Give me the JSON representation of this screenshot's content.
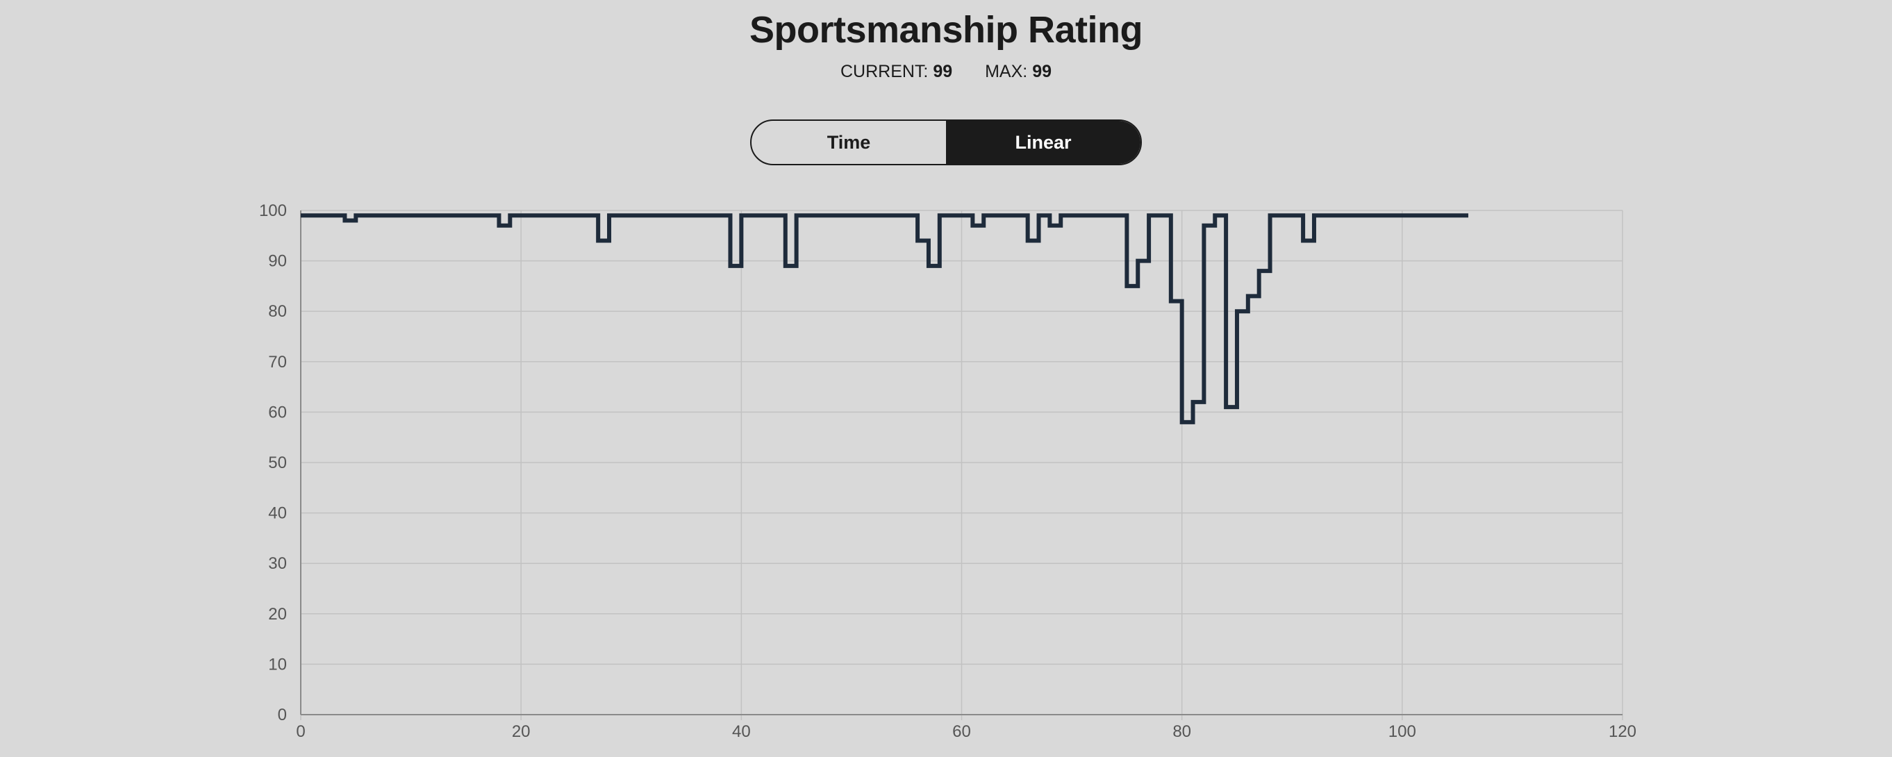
{
  "title": "Sportsmanship Rating",
  "stats": {
    "current_label": "CURRENT:",
    "current_value": "99",
    "max_label": "MAX:",
    "max_value": "99"
  },
  "toggle": {
    "options": [
      "Time",
      "Linear"
    ],
    "selected": "Linear"
  },
  "colors": {
    "background": "#d9d9d9",
    "line": "#1e2b3b",
    "grid": "#c2c2c2",
    "toggle_active": "#1b1b1b"
  },
  "chart_data": {
    "type": "line",
    "stepped": true,
    "title": "",
    "xlabel": "",
    "ylabel": "",
    "xlim": [
      0,
      120
    ],
    "ylim": [
      0,
      100
    ],
    "x_ticks": [
      0,
      20,
      40,
      60,
      80,
      100,
      120
    ],
    "y_ticks": [
      0,
      10,
      20,
      30,
      40,
      50,
      60,
      70,
      80,
      90,
      100
    ],
    "grid": true,
    "legend": "none",
    "series": [
      {
        "values": [
          99,
          99,
          99,
          99,
          98,
          99,
          99,
          99,
          99,
          99,
          99,
          99,
          99,
          99,
          99,
          99,
          99,
          99,
          97,
          99,
          99,
          99,
          99,
          99,
          99,
          99,
          99,
          94,
          99,
          99,
          99,
          99,
          99,
          99,
          99,
          99,
          99,
          99,
          99,
          89,
          99,
          99,
          99,
          99,
          89,
          99,
          99,
          99,
          99,
          99,
          99,
          99,
          99,
          99,
          99,
          99,
          94,
          89,
          99,
          99,
          99,
          97,
          99,
          99,
          99,
          99,
          94,
          99,
          97,
          99,
          99,
          99,
          99,
          99,
          99,
          85,
          90,
          99,
          99,
          82,
          58,
          62,
          97,
          99,
          61,
          80,
          83,
          88,
          99,
          99,
          99,
          94,
          99,
          99,
          99,
          99,
          99,
          99,
          99,
          99,
          99,
          99,
          99,
          99,
          99,
          99,
          99
        ]
      }
    ]
  }
}
